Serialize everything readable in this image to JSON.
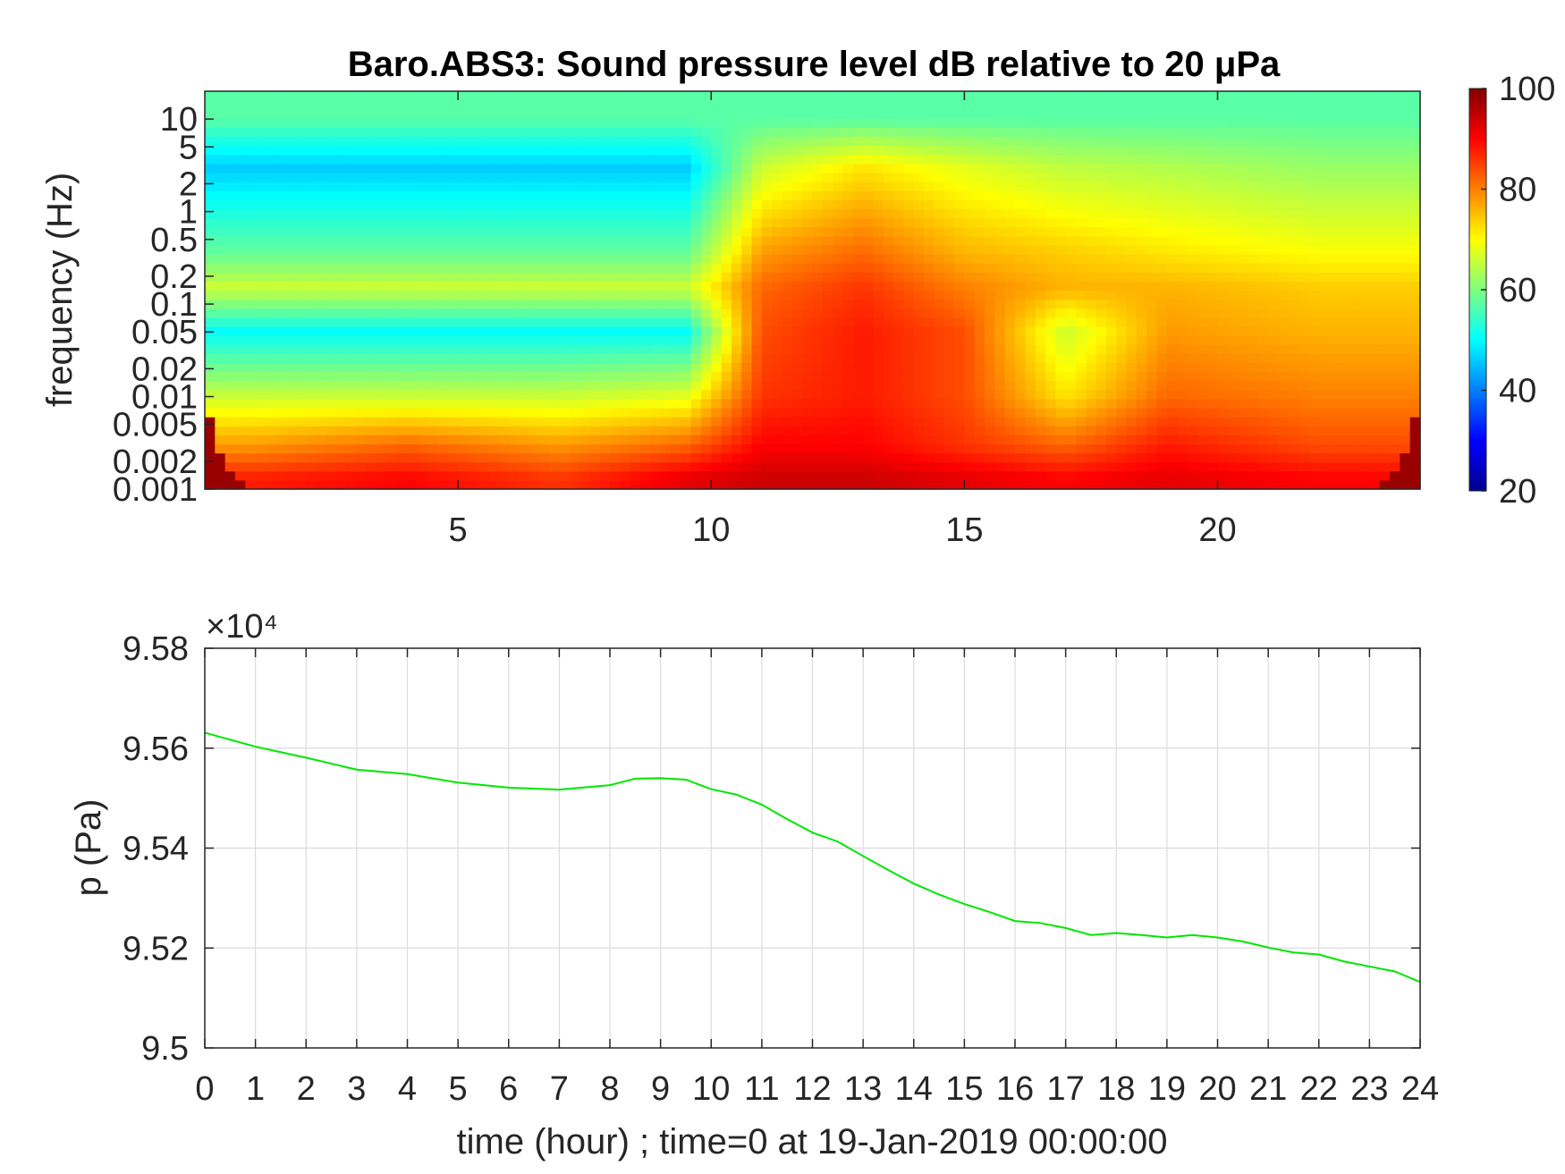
{
  "chart_data": [
    {
      "type": "heatmap",
      "title": "Baro.ABS3: Sound pressure level dB relative to 20 μPa",
      "xlabel": "",
      "ylabel": "frequency (Hz)",
      "xlim": [
        0,
        24
      ],
      "ylim": [
        0.001,
        20
      ],
      "y_scale": "log",
      "x_ticks": [
        5,
        10,
        15,
        20
      ],
      "y_ticks": [
        0.001,
        0.002,
        0.005,
        0.01,
        0.02,
        0.05,
        0.1,
        0.2,
        0.5,
        1,
        2,
        5,
        10
      ],
      "colorbar": {
        "range": [
          20,
          100
        ],
        "ticks": [
          20,
          40,
          60,
          80,
          100
        ],
        "colormap": "jet"
      },
      "description_of_levels": {
        "rows_hz": [
          10,
          3,
          0.35,
          0.15,
          0.05,
          0.01,
          0.003,
          0.0013
        ],
        "time_hours": [
          1,
          4,
          7,
          9.5,
          11,
          13,
          15,
          17,
          19,
          22
        ],
        "level_db": [
          [
            57,
            57,
            57,
            57,
            57,
            57,
            57,
            57,
            57,
            57
          ],
          [
            46,
            46,
            46,
            46,
            66,
            72,
            68,
            65,
            64,
            62
          ],
          [
            58,
            58,
            58,
            58,
            78,
            82,
            76,
            74,
            72,
            70
          ],
          [
            66,
            66,
            66,
            66,
            82,
            86,
            80,
            76,
            76,
            74
          ],
          [
            50,
            50,
            50,
            50,
            84,
            88,
            84,
            66,
            78,
            76
          ],
          [
            66,
            66,
            66,
            68,
            86,
            88,
            84,
            72,
            82,
            80
          ],
          [
            78,
            82,
            78,
            82,
            90,
            90,
            86,
            82,
            88,
            84
          ],
          [
            88,
            90,
            86,
            92,
            94,
            94,
            92,
            90,
            92,
            90
          ]
        ]
      }
    },
    {
      "type": "line",
      "xlabel": "time (hour) ; time=0 at 19-Jan-2019 00:00:00",
      "ylabel": "p (Pa)",
      "y_multiplier": "×10⁴",
      "xlim": [
        0,
        24
      ],
      "ylim": [
        9.5,
        9.58
      ],
      "grid": true,
      "x_ticks": [
        0,
        1,
        2,
        3,
        4,
        5,
        6,
        7,
        8,
        9,
        10,
        11,
        12,
        13,
        14,
        15,
        16,
        17,
        18,
        19,
        20,
        21,
        22,
        23,
        24
      ],
      "y_ticks": [
        9.5,
        9.52,
        9.54,
        9.56,
        9.58
      ],
      "y_tick_labels": [
        "9.5",
        "9.52",
        "9.54",
        "9.56",
        "9.58"
      ],
      "series": [
        {
          "color": "#00e600",
          "x": [
            0,
            1,
            2,
            3,
            4,
            5,
            6,
            7,
            8,
            8.5,
            9,
            9.5,
            10,
            10.5,
            11,
            11.5,
            12,
            12.5,
            13,
            13.5,
            14,
            14.5,
            15,
            15.5,
            16,
            16.5,
            17,
            17.5,
            18,
            18.5,
            19,
            19.5,
            20,
            20.5,
            21,
            21.5,
            22,
            22.5,
            23,
            23.5,
            24
          ],
          "y": [
            9.5631,
            9.5603,
            9.5581,
            9.5557,
            9.5548,
            9.5531,
            9.5521,
            9.5517,
            9.5526,
            9.5539,
            9.554,
            9.5537,
            9.5518,
            9.5507,
            9.5487,
            9.5458,
            9.5431,
            9.5413,
            9.5384,
            9.5356,
            9.5329,
            9.5307,
            9.5288,
            9.5272,
            9.5254,
            9.525,
            9.524,
            9.5226,
            9.523,
            9.5226,
            9.5221,
            9.5226,
            9.5221,
            9.5213,
            9.5201,
            9.5191,
            9.5187,
            9.5173,
            9.5163,
            9.5153,
            9.5132
          ]
        }
      ]
    }
  ]
}
